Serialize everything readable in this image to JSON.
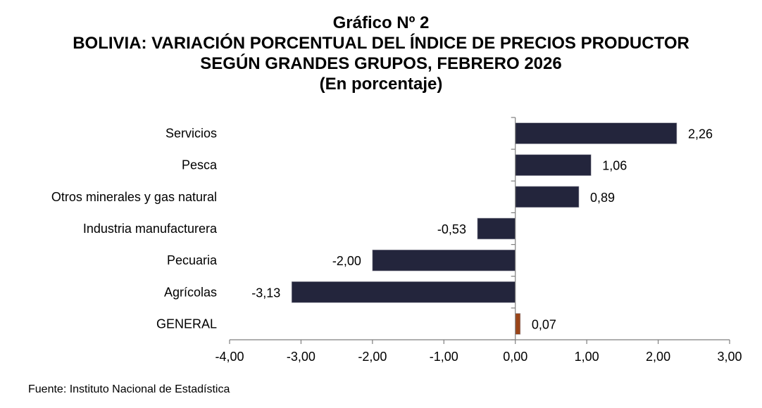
{
  "chart_data": {
    "type": "bar",
    "orientation": "horizontal",
    "title_lines": [
      "Gráfico Nº 2",
      "BOLIVIA: VARIACIÓN PORCENTUAL DEL ÍNDICE DE PRECIOS PRODUCTOR",
      "SEGÚN GRANDES GRUPOS, FEBRERO 2026",
      "(En porcentaje)"
    ],
    "categories": [
      "Servicios",
      "Pesca",
      "Otros minerales y gas natural",
      "Industria manufacturera",
      "Pecuaria",
      "Agrícolas",
      "GENERAL"
    ],
    "values": [
      2.26,
      1.06,
      0.89,
      -0.53,
      -2.0,
      -3.13,
      0.07
    ],
    "value_labels": [
      "2,26",
      "1,06",
      "0,89",
      "-0,53",
      "-2,00",
      "-3,13",
      "0,07"
    ],
    "colors": [
      "#23253c",
      "#23253c",
      "#23253c",
      "#23253c",
      "#23253c",
      "#23253c",
      "#9a4418"
    ],
    "xlim": [
      -4,
      3
    ],
    "xticks": [
      -4,
      -3,
      -2,
      -1,
      0,
      1,
      2,
      3
    ],
    "xtick_labels": [
      "-4,00",
      "-3,00",
      "-2,00",
      "-1,00",
      "0,00",
      "1,00",
      "2,00",
      "3,00"
    ],
    "xlabel": "",
    "ylabel": "",
    "grid": false,
    "legend": "none"
  },
  "source": "Fuente: Instituto Nacional de Estadística"
}
